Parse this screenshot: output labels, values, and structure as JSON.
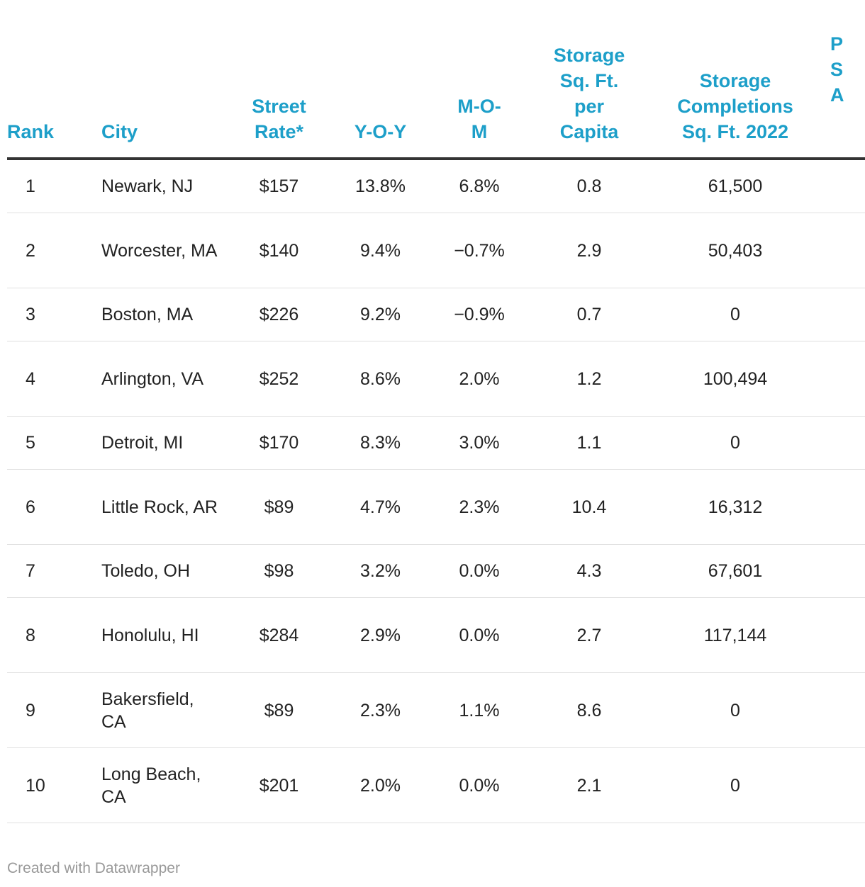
{
  "chart_data": {
    "type": "table",
    "columns": [
      {
        "key": "rank",
        "label": "Rank"
      },
      {
        "key": "city",
        "label": "City"
      },
      {
        "key": "street_rate",
        "label": "Street Rate*"
      },
      {
        "key": "yoy",
        "label": "Y-O-Y"
      },
      {
        "key": "mom",
        "label": "M-O-M"
      },
      {
        "key": "sqft_per_capita",
        "label": "Storage Sq. Ft. per Capita"
      },
      {
        "key": "completions",
        "label": "Storage Completions Sq. Ft. 2022"
      },
      {
        "key": "truncated",
        "label": "P S A"
      }
    ],
    "rows": [
      {
        "rank": "1",
        "city": "Newark, NJ",
        "street_rate": "$157",
        "yoy": "13.8%",
        "mom": "6.8%",
        "sqft_per_capita": "0.8",
        "completions": "61,500"
      },
      {
        "rank": "2",
        "city": "Worcester, MA",
        "street_rate": "$140",
        "yoy": "9.4%",
        "mom": "−0.7%",
        "sqft_per_capita": "2.9",
        "completions": "50,403"
      },
      {
        "rank": "3",
        "city": "Boston, MA",
        "street_rate": "$226",
        "yoy": "9.2%",
        "mom": "−0.9%",
        "sqft_per_capita": "0.7",
        "completions": "0"
      },
      {
        "rank": "4",
        "city": "Arlington, VA",
        "street_rate": "$252",
        "yoy": "8.6%",
        "mom": "2.0%",
        "sqft_per_capita": "1.2",
        "completions": "100,494"
      },
      {
        "rank": "5",
        "city": "Detroit, MI",
        "street_rate": "$170",
        "yoy": "8.3%",
        "mom": "3.0%",
        "sqft_per_capita": "1.1",
        "completions": "0"
      },
      {
        "rank": "6",
        "city": "Little Rock, AR",
        "street_rate": "$89",
        "yoy": "4.7%",
        "mom": "2.3%",
        "sqft_per_capita": "10.4",
        "completions": "16,312"
      },
      {
        "rank": "7",
        "city": "Toledo, OH",
        "street_rate": "$98",
        "yoy": "3.2%",
        "mom": "0.0%",
        "sqft_per_capita": "4.3",
        "completions": "67,601"
      },
      {
        "rank": "8",
        "city": "Honolulu, HI",
        "street_rate": "$284",
        "yoy": "2.9%",
        "mom": "0.0%",
        "sqft_per_capita": "2.7",
        "completions": "117,144"
      },
      {
        "rank": "9",
        "city": "Bakersfield, CA",
        "street_rate": "$89",
        "yoy": "2.3%",
        "mom": "1.1%",
        "sqft_per_capita": "8.6",
        "completions": "0"
      },
      {
        "rank": "10",
        "city": "Long Beach, CA",
        "street_rate": "$201",
        "yoy": "2.0%",
        "mom": "0.0%",
        "sqft_per_capita": "2.1",
        "completions": "0"
      }
    ],
    "colors": {
      "header": "#1d9fc9",
      "text": "#222222",
      "rule": "#333333",
      "row_divider": "#e0e0e0",
      "footer": "#999999"
    }
  },
  "footer": {
    "credit": "Created with Datawrapper"
  }
}
